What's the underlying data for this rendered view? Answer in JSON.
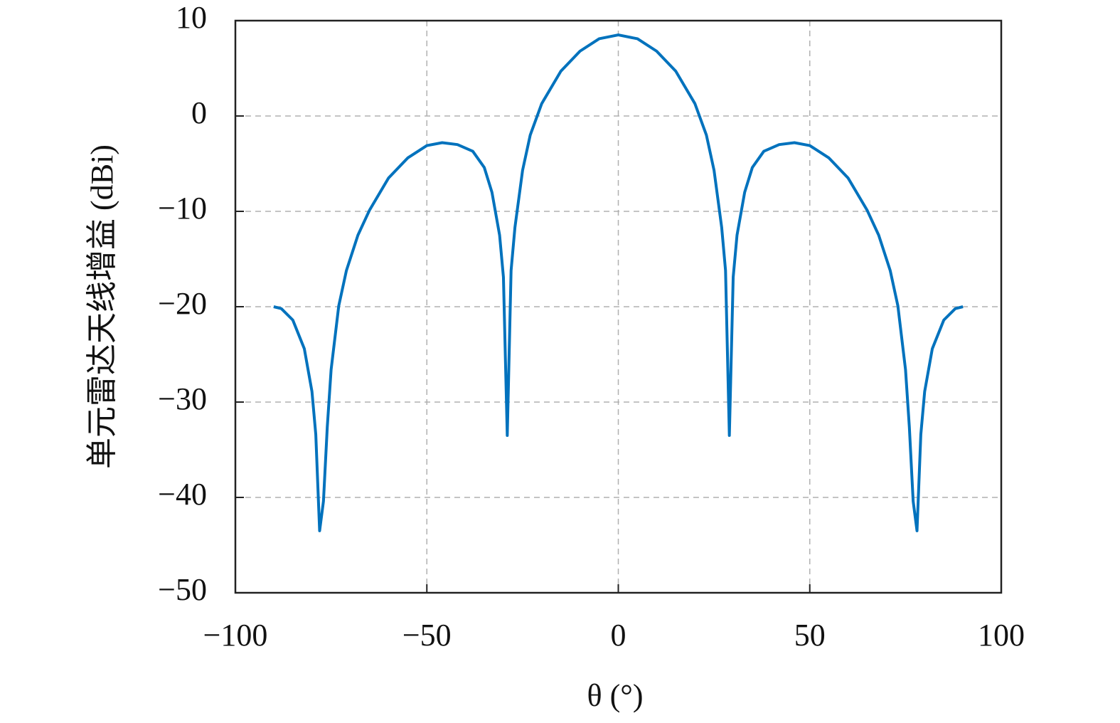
{
  "chart_data": {
    "type": "line",
    "xlabel": "θ (°)",
    "ylabel": "单元雷达天线增益 (dBi)",
    "x": [
      -90,
      -88,
      -85,
      -82,
      -80,
      -79,
      -78,
      -77,
      -76,
      -75,
      -73,
      -71,
      -68,
      -65,
      -60,
      -55,
      -50,
      -46,
      -42,
      -38,
      -35,
      -33,
      -31,
      -30,
      -29,
      -28,
      -27,
      -25,
      -23,
      -20,
      -15,
      -10,
      -5,
      0,
      5,
      10,
      15,
      20,
      23,
      25,
      27,
      28,
      29,
      30,
      31,
      33,
      35,
      38,
      42,
      46,
      50,
      55,
      60,
      65,
      68,
      71,
      73,
      75,
      76,
      77,
      78,
      79,
      80,
      82,
      85,
      88,
      90
    ],
    "series": [
      {
        "color": "#0072bd",
        "values": [
          -20.0,
          -20.2,
          -21.4,
          -24.4,
          -28.9,
          -33.4,
          -43.5,
          -40.4,
          -32.6,
          -26.6,
          -19.9,
          -16.2,
          -12.5,
          -9.9,
          -6.5,
          -4.4,
          -3.1,
          -2.8,
          -3.0,
          -3.7,
          -5.4,
          -8.0,
          -12.5,
          -16.9,
          -33.5,
          -16.2,
          -11.7,
          -5.7,
          -2.0,
          1.3,
          4.7,
          6.8,
          8.1,
          8.5,
          8.1,
          6.8,
          4.7,
          1.3,
          -2.0,
          -5.7,
          -11.7,
          -16.2,
          -33.5,
          -16.9,
          -12.5,
          -8.0,
          -5.4,
          -3.7,
          -3.0,
          -2.8,
          -3.1,
          -4.4,
          -6.5,
          -9.9,
          -12.5,
          -16.2,
          -19.9,
          -26.6,
          -32.6,
          -40.4,
          -43.5,
          -33.4,
          -28.9,
          -24.4,
          -21.4,
          -20.2,
          -20.0
        ]
      }
    ],
    "xlim": [
      -100,
      100
    ],
    "ylim": [
      -50,
      10
    ],
    "xticks": [
      {
        "value": -100,
        "label": "−100"
      },
      {
        "value": -50,
        "label": "−50"
      },
      0,
      50,
      100
    ],
    "yticks": [
      {
        "value": -50,
        "label": "−50"
      },
      {
        "value": -40,
        "label": "−40"
      },
      {
        "value": -30,
        "label": "−30"
      },
      {
        "value": -20,
        "label": "−20"
      },
      {
        "value": -10,
        "label": "−10"
      },
      0,
      10
    ],
    "grid": true
  }
}
